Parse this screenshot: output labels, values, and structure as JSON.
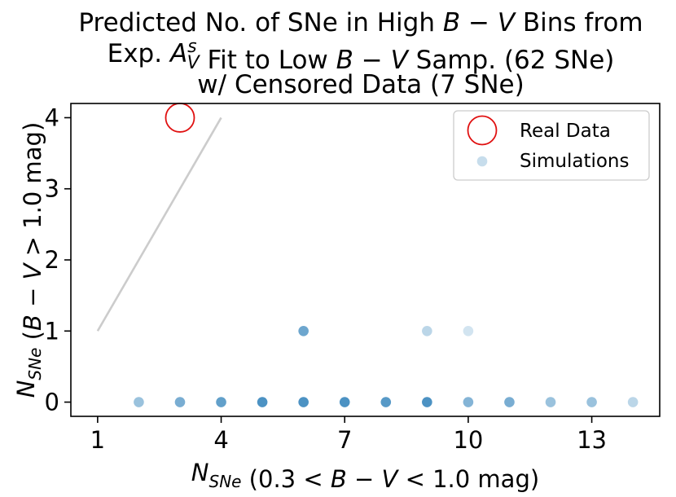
{
  "chart_data": {
    "type": "scatter",
    "title": [
      {
        "parts": [
          {
            "t": "Predicted No. of SNe in High "
          },
          {
            "t": "B",
            "i": true
          },
          {
            "t": " − "
          },
          {
            "t": "V",
            "i": true
          },
          {
            "t": " Bins from"
          }
        ]
      },
      {
        "parts": [
          {
            "t": "Exp. "
          },
          {
            "t": "A",
            "i": true
          },
          {
            "t": "s",
            "i": true,
            "sup": true
          },
          {
            "t": "V",
            "i": true,
            "sub": true,
            "back": true
          },
          {
            "t": " Fit to Low "
          },
          {
            "t": "B",
            "i": true
          },
          {
            "t": " − "
          },
          {
            "t": "V",
            "i": true
          },
          {
            "t": " Samp. (62 SNe)"
          }
        ]
      },
      {
        "parts": [
          {
            "t": "w/ Censored Data (7 SNe)"
          }
        ]
      }
    ],
    "xlabel": [
      {
        "t": "N",
        "i": true
      },
      {
        "t": "SNe",
        "i": true,
        "sub": true
      },
      {
        "t": " (0.3 < "
      },
      {
        "t": "B",
        "i": true
      },
      {
        "t": " − "
      },
      {
        "t": "V",
        "i": true
      },
      {
        "t": " < 1.0 mag)"
      }
    ],
    "ylabel": [
      {
        "t": "N",
        "i": true
      },
      {
        "t": "SNe",
        "i": true,
        "sub": true
      },
      {
        "t": " ("
      },
      {
        "t": "B",
        "i": true
      },
      {
        "t": " − "
      },
      {
        "t": "V",
        "i": true
      },
      {
        "t": " > 1.0 mag)"
      }
    ],
    "xlim": [
      0.35,
      14.65
    ],
    "ylim": [
      -0.2,
      4.2
    ],
    "xticks": [
      1,
      4,
      7,
      10,
      13
    ],
    "yticks": [
      0,
      1,
      2,
      3,
      4
    ],
    "reference_line": {
      "x": [
        1,
        4
      ],
      "y": [
        1,
        4
      ],
      "color": "#cccccc"
    },
    "real_data": {
      "name": "Real Data",
      "x": 3,
      "y": 4,
      "color": "#e01010"
    },
    "simulations": {
      "name": "Simulations",
      "color": "#1f77b4",
      "points": [
        {
          "x": 2,
          "y": 0,
          "alpha": 0.45
        },
        {
          "x": 3,
          "y": 0,
          "alpha": 0.6
        },
        {
          "x": 4,
          "y": 0,
          "alpha": 0.7
        },
        {
          "x": 5,
          "y": 0,
          "alpha": 0.8
        },
        {
          "x": 6,
          "y": 0,
          "alpha": 0.8
        },
        {
          "x": 7,
          "y": 0,
          "alpha": 0.8
        },
        {
          "x": 8,
          "y": 0,
          "alpha": 0.75
        },
        {
          "x": 9,
          "y": 0,
          "alpha": 0.8
        },
        {
          "x": 10,
          "y": 0,
          "alpha": 0.55
        },
        {
          "x": 11,
          "y": 0,
          "alpha": 0.6
        },
        {
          "x": 12,
          "y": 0,
          "alpha": 0.45
        },
        {
          "x": 13,
          "y": 0,
          "alpha": 0.45
        },
        {
          "x": 14,
          "y": 0,
          "alpha": 0.3
        },
        {
          "x": 6,
          "y": 1,
          "alpha": 0.65
        },
        {
          "x": 9,
          "y": 1,
          "alpha": 0.3
        },
        {
          "x": 10,
          "y": 1,
          "alpha": 0.2
        }
      ]
    },
    "legend": {
      "location": "upper right",
      "entries": [
        "Real Data",
        "Simulations"
      ]
    }
  }
}
